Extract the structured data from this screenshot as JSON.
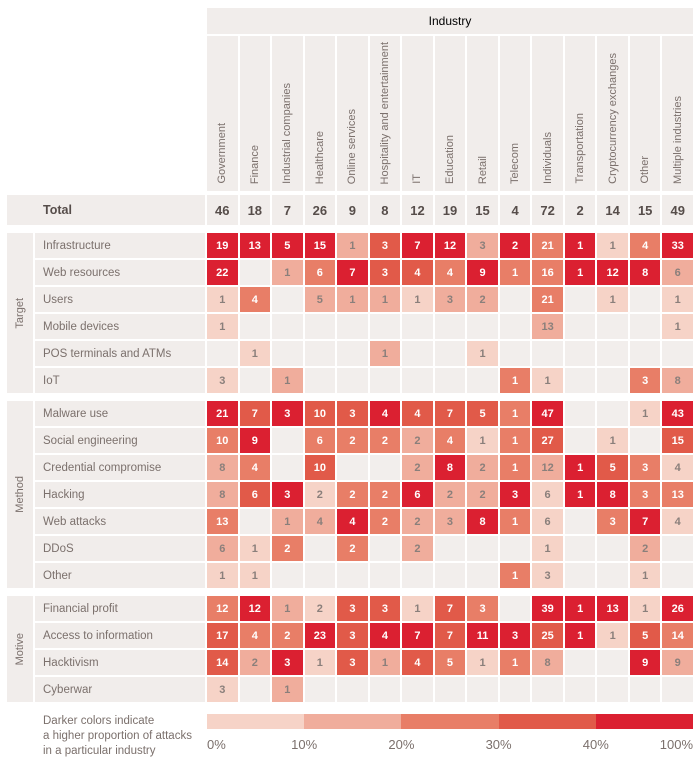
{
  "header": {
    "industry_label": "Industry",
    "total_label": "Total"
  },
  "chart_data": {
    "type": "heatmap",
    "title": "Industry",
    "columns": [
      "Government",
      "Finance",
      "Industrial companies",
      "Healthcare",
      "Online services",
      "Hospitality and entertainment",
      "IT",
      "Education",
      "Retail",
      "Telecom",
      "Individuals",
      "Transportation",
      "Cryptocurrency exchanges",
      "Other",
      "Multiple industries"
    ],
    "totals": [
      46,
      18,
      7,
      26,
      9,
      8,
      12,
      19,
      15,
      4,
      72,
      2,
      14,
      15,
      49
    ],
    "cell_format": "[count, color_level 1-5] ; null = no attacks recorded",
    "legend_thresholds_percent": [
      0,
      10,
      20,
      30,
      40,
      100
    ],
    "row_groups": [
      {
        "label": "Target",
        "rows": [
          {
            "label": "Infrastructure",
            "cells": [
              [
                19,
                5
              ],
              [
                13,
                5
              ],
              [
                5,
                5
              ],
              [
                15,
                5
              ],
              [
                1,
                2
              ],
              [
                3,
                4
              ],
              [
                7,
                5
              ],
              [
                12,
                5
              ],
              [
                3,
                2
              ],
              [
                2,
                5
              ],
              [
                21,
                3
              ],
              [
                1,
                5
              ],
              [
                1,
                1
              ],
              [
                4,
                3
              ],
              [
                33,
                5
              ]
            ]
          },
          {
            "label": "Web resources",
            "cells": [
              [
                22,
                5
              ],
              null,
              [
                1,
                2
              ],
              [
                6,
                3
              ],
              [
                7,
                5
              ],
              [
                3,
                4
              ],
              [
                4,
                4
              ],
              [
                4,
                3
              ],
              [
                9,
                5
              ],
              [
                1,
                3
              ],
              [
                16,
                3
              ],
              [
                1,
                5
              ],
              [
                12,
                5
              ],
              [
                8,
                5
              ],
              [
                6,
                2
              ]
            ]
          },
          {
            "label": "Users",
            "cells": [
              [
                1,
                1
              ],
              [
                4,
                3
              ],
              null,
              [
                5,
                2
              ],
              [
                1,
                2
              ],
              [
                1,
                2
              ],
              [
                1,
                1
              ],
              [
                3,
                2
              ],
              [
                2,
                2
              ],
              null,
              [
                21,
                3
              ],
              null,
              [
                1,
                1
              ],
              null,
              [
                1,
                1
              ]
            ]
          },
          {
            "label": "Mobile devices",
            "cells": [
              [
                1,
                1
              ],
              null,
              null,
              null,
              null,
              null,
              null,
              null,
              null,
              null,
              [
                13,
                2
              ],
              null,
              null,
              null,
              [
                1,
                1
              ]
            ]
          },
          {
            "label": "POS terminals and ATMs",
            "cells": [
              null,
              [
                1,
                1
              ],
              null,
              null,
              null,
              [
                1,
                2
              ],
              null,
              null,
              [
                1,
                1
              ],
              null,
              null,
              null,
              null,
              null,
              null
            ]
          },
          {
            "label": "IoT",
            "cells": [
              [
                3,
                1
              ],
              null,
              [
                1,
                2
              ],
              null,
              null,
              null,
              null,
              null,
              null,
              [
                1,
                3
              ],
              [
                1,
                1
              ],
              null,
              null,
              [
                3,
                3
              ],
              [
                8,
                2
              ]
            ]
          }
        ]
      },
      {
        "label": "Method",
        "rows": [
          {
            "label": "Malware use",
            "cells": [
              [
                21,
                5
              ],
              [
                7,
                4
              ],
              [
                3,
                5
              ],
              [
                10,
                4
              ],
              [
                3,
                4
              ],
              [
                4,
                5
              ],
              [
                4,
                4
              ],
              [
                7,
                4
              ],
              [
                5,
                4
              ],
              [
                1,
                3
              ],
              [
                47,
                5
              ],
              null,
              null,
              [
                1,
                1
              ],
              [
                43,
                5
              ]
            ]
          },
          {
            "label": "Social engineering",
            "cells": [
              [
                10,
                3
              ],
              [
                9,
                5
              ],
              null,
              [
                6,
                3
              ],
              [
                2,
                3
              ],
              [
                2,
                3
              ],
              [
                2,
                2
              ],
              [
                4,
                3
              ],
              [
                1,
                1
              ],
              [
                1,
                3
              ],
              [
                27,
                4
              ],
              null,
              [
                1,
                1
              ],
              null,
              [
                15,
                4
              ]
            ]
          },
          {
            "label": "Credential compromise",
            "cells": [
              [
                8,
                2
              ],
              [
                4,
                3
              ],
              null,
              [
                10,
                4
              ],
              null,
              null,
              [
                2,
                2
              ],
              [
                8,
                5
              ],
              [
                2,
                2
              ],
              [
                1,
                3
              ],
              [
                12,
                2
              ],
              [
                1,
                5
              ],
              [
                5,
                4
              ],
              [
                3,
                3
              ],
              [
                4,
                1
              ]
            ]
          },
          {
            "label": "Hacking",
            "cells": [
              [
                8,
                2
              ],
              [
                6,
                4
              ],
              [
                3,
                5
              ],
              [
                2,
                1
              ],
              [
                2,
                3
              ],
              [
                2,
                3
              ],
              [
                6,
                5
              ],
              [
                2,
                2
              ],
              [
                2,
                2
              ],
              [
                3,
                5
              ],
              [
                6,
                1
              ],
              [
                1,
                5
              ],
              [
                8,
                5
              ],
              [
                3,
                3
              ],
              [
                13,
                3
              ]
            ]
          },
          {
            "label": "Web attacks",
            "cells": [
              [
                13,
                3
              ],
              null,
              [
                1,
                2
              ],
              [
                4,
                2
              ],
              [
                4,
                5
              ],
              [
                2,
                3
              ],
              [
                2,
                2
              ],
              [
                3,
                2
              ],
              [
                8,
                5
              ],
              [
                1,
                3
              ],
              [
                6,
                1
              ],
              null,
              [
                3,
                3
              ],
              [
                7,
                5
              ],
              [
                4,
                1
              ]
            ]
          },
          {
            "label": "DDoS",
            "cells": [
              [
                6,
                2
              ],
              [
                1,
                1
              ],
              [
                2,
                3
              ],
              null,
              [
                2,
                3
              ],
              null,
              [
                2,
                2
              ],
              null,
              null,
              null,
              [
                1,
                1
              ],
              null,
              null,
              [
                2,
                2
              ],
              null
            ]
          },
          {
            "label": "Other",
            "cells": [
              [
                1,
                1
              ],
              [
                1,
                1
              ],
              null,
              null,
              null,
              null,
              null,
              null,
              null,
              [
                1,
                3
              ],
              [
                3,
                1
              ],
              null,
              null,
              [
                1,
                1
              ],
              null
            ]
          }
        ]
      },
      {
        "label": "Motive",
        "rows": [
          {
            "label": "Financial profit",
            "cells": [
              [
                12,
                3
              ],
              [
                12,
                5
              ],
              [
                1,
                2
              ],
              [
                2,
                1
              ],
              [
                3,
                4
              ],
              [
                3,
                4
              ],
              [
                1,
                1
              ],
              [
                7,
                4
              ],
              [
                3,
                3
              ],
              null,
              [
                39,
                5
              ],
              [
                1,
                5
              ],
              [
                13,
                5
              ],
              [
                1,
                1
              ],
              [
                26,
                5
              ]
            ]
          },
          {
            "label": "Access to information",
            "cells": [
              [
                17,
                4
              ],
              [
                4,
                3
              ],
              [
                2,
                3
              ],
              [
                23,
                5
              ],
              [
                3,
                4
              ],
              [
                4,
                5
              ],
              [
                7,
                5
              ],
              [
                7,
                4
              ],
              [
                11,
                5
              ],
              [
                3,
                5
              ],
              [
                25,
                4
              ],
              [
                1,
                5
              ],
              [
                1,
                1
              ],
              [
                5,
                4
              ],
              [
                14,
                3
              ]
            ]
          },
          {
            "label": "Hacktivism",
            "cells": [
              [
                14,
                4
              ],
              [
                2,
                2
              ],
              [
                3,
                5
              ],
              [
                1,
                1
              ],
              [
                3,
                4
              ],
              [
                1,
                2
              ],
              [
                4,
                4
              ],
              [
                5,
                3
              ],
              [
                1,
                1
              ],
              [
                1,
                3
              ],
              [
                8,
                2
              ],
              null,
              null,
              [
                9,
                5
              ],
              [
                9,
                2
              ]
            ]
          },
          {
            "label": "Cyberwar",
            "cells": [
              [
                3,
                1
              ],
              null,
              [
                1,
                2
              ],
              null,
              null,
              null,
              null,
              null,
              null,
              null,
              null,
              null,
              null,
              null,
              null
            ]
          }
        ]
      }
    ]
  },
  "legend": {
    "lines": [
      "Darker colors indicate",
      "a higher proportion of attacks",
      "in a particular industry"
    ],
    "ticks": [
      "0%",
      "10%",
      "20%",
      "30%",
      "40%",
      "100%"
    ]
  },
  "palette": {
    "empty_cell": "#f2eeec",
    "header_bg": "#f1edeb",
    "levels": [
      "#f6d3c7",
      "#f0ad9c",
      "#e87e67",
      "#e15a49",
      "#db2031"
    ],
    "label_text": "#7b706c",
    "number_text_light": "#8a7f7b",
    "number_text_dark": "#ffffff",
    "total_text": "#564d4a"
  }
}
